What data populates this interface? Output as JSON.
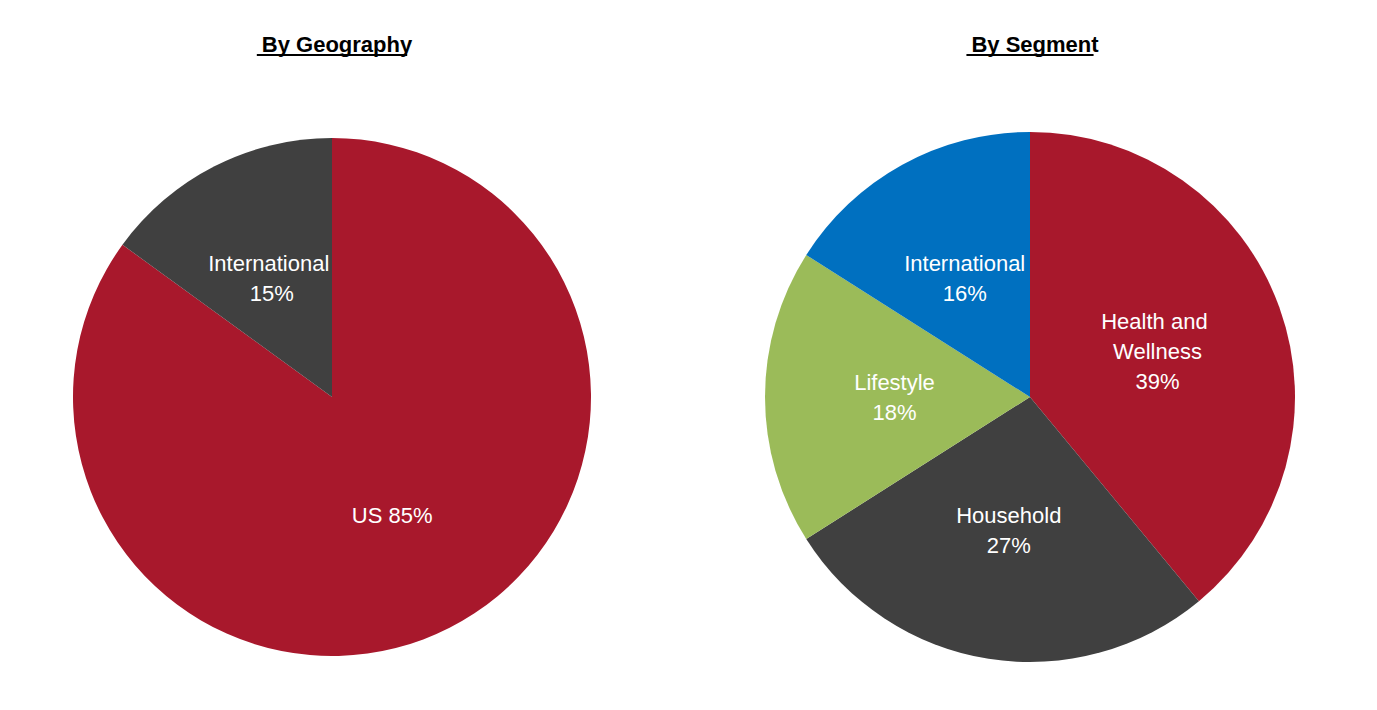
{
  "chart_data": [
    {
      "type": "pie",
      "title": "By Geography",
      "categories": [
        "US",
        "International"
      ],
      "values": [
        85,
        15
      ],
      "value_labels": [
        "85%",
        "15%"
      ],
      "colors": [
        "#a8182c",
        "#404040"
      ],
      "data_labels": true
    },
    {
      "type": "pie",
      "title": "By Segment",
      "categories": [
        "Health and Wellness",
        "Household",
        "Lifestyle",
        "International"
      ],
      "values": [
        39,
        27,
        18,
        16
      ],
      "value_labels": [
        "39%",
        "27%",
        "18%",
        "16%"
      ],
      "colors": [
        "#a8182c",
        "#404040",
        "#9bbb59",
        "#0070c0"
      ],
      "data_labels": true
    }
  ]
}
